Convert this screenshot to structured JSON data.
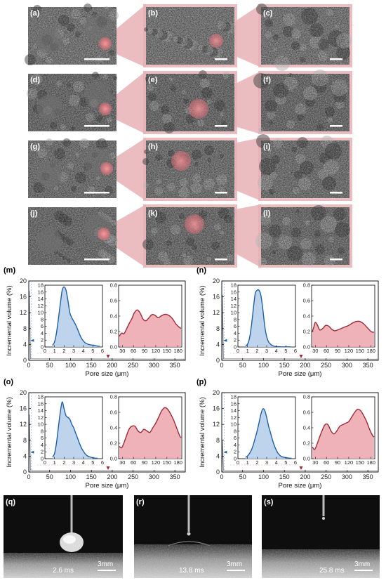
{
  "sem_panels": [
    {
      "label": "(a)"
    },
    {
      "label": "(b)"
    },
    {
      "label": "(c)"
    },
    {
      "label": "(d)"
    },
    {
      "label": "(e)"
    },
    {
      "label": "(f)"
    },
    {
      "label": "(g)"
    },
    {
      "label": "(h)"
    },
    {
      "label": "(i)"
    },
    {
      "label": "(j)"
    },
    {
      "label": "(k)"
    },
    {
      "label": "(l)"
    }
  ],
  "colors": {
    "highlight": "#e06b73",
    "wedge": "#e8b2b6",
    "small_line": "#1f5fa8",
    "small_fill": "#b7cfea",
    "large_line": "#9e2a35",
    "large_fill": "#ecaab0"
  },
  "chart_data": [
    {
      "panel": "(m)",
      "type": "area",
      "main": {
        "ylabel": "Incremental volume (%)",
        "xlabel": "Pore size (μm)",
        "xlim": [
          0,
          375
        ],
        "ylim": [
          0,
          20
        ],
        "xticks": [
          0,
          50,
          100,
          150,
          200,
          250,
          300,
          350
        ],
        "yticks": [
          0,
          4,
          8,
          12,
          16,
          20
        ]
      },
      "inset_small": {
        "xlim": [
          0,
          6
        ],
        "ylim": [
          0,
          18
        ],
        "xticks": [
          0,
          1,
          2,
          3,
          4,
          5,
          6
        ],
        "yticks": [
          0,
          2,
          4,
          6,
          8,
          10,
          12,
          14,
          16,
          18
        ],
        "x": [
          0.8,
          1.0,
          1.2,
          1.4,
          1.6,
          1.8,
          2.0,
          2.2,
          2.4,
          2.6,
          2.8,
          3.0,
          3.2,
          3.4,
          3.6,
          3.8,
          4.0,
          4.2,
          4.5,
          4.8,
          5.1,
          5.4,
          5.7
        ],
        "y": [
          0.5,
          1.5,
          4,
          8,
          12.5,
          16.5,
          17.5,
          16.5,
          13.5,
          10,
          8.5,
          7.5,
          6.5,
          5.2,
          3.8,
          2.6,
          1.8,
          1.2,
          0.8,
          0.6,
          0.5,
          0.3,
          0.2
        ]
      },
      "inset_large": {
        "xlim": [
          20,
          190
        ],
        "ylim": [
          0,
          0.8
        ],
        "xticks": [
          30,
          60,
          90,
          120,
          150,
          180
        ],
        "yticks": [
          0,
          0.2,
          0.4,
          0.6,
          0.8
        ],
        "x": [
          22,
          28,
          34,
          40,
          48,
          56,
          62,
          70,
          78,
          86,
          94,
          102,
          110,
          118,
          126,
          134,
          142,
          150,
          158,
          166,
          174,
          182,
          188
        ],
        "y": [
          0.14,
          0.18,
          0.17,
          0.22,
          0.3,
          0.37,
          0.44,
          0.48,
          0.44,
          0.36,
          0.34,
          0.38,
          0.42,
          0.41,
          0.38,
          0.4,
          0.42,
          0.42,
          0.4,
          0.36,
          0.3,
          0.26,
          0.24
        ]
      }
    },
    {
      "panel": "(n)",
      "type": "area",
      "main": {
        "ylabel": "Incremental volume (%)",
        "xlabel": "Pore size (μm)",
        "xlim": [
          0,
          375
        ],
        "ylim": [
          0,
          20
        ],
        "xticks": [
          0,
          50,
          100,
          150,
          200,
          250,
          300,
          350
        ],
        "yticks": [
          0,
          4,
          8,
          12,
          16,
          20
        ]
      },
      "inset_small": {
        "xlim": [
          0,
          6
        ],
        "ylim": [
          0,
          18
        ],
        "xticks": [
          0,
          1,
          2,
          3,
          4,
          5,
          6
        ],
        "yticks": [
          0,
          2,
          4,
          6,
          8,
          10,
          12,
          14,
          16,
          18
        ],
        "x": [
          0.8,
          1.0,
          1.2,
          1.4,
          1.6,
          1.8,
          2.0,
          2.2,
          2.4,
          2.6,
          2.8,
          3.0,
          3.2,
          3.4,
          3.6,
          3.8,
          4.0,
          4.5,
          5.0,
          5.5
        ],
        "y": [
          0.3,
          0.8,
          2.5,
          6,
          11,
          15.5,
          16.5,
          16.5,
          15,
          11,
          6,
          3,
          1.5,
          0.8,
          0.4,
          0.2,
          0.1,
          0.05,
          0.05,
          0.05
        ]
      },
      "inset_large": {
        "xlim": [
          20,
          190
        ],
        "ylim": [
          0,
          0.8
        ],
        "xticks": [
          30,
          60,
          90,
          120,
          150,
          180
        ],
        "yticks": [
          0,
          0.2,
          0.4,
          0.6,
          0.8
        ],
        "x": [
          22,
          26,
          30,
          36,
          42,
          50,
          58,
          66,
          74,
          82,
          90,
          100,
          110,
          120,
          130,
          140,
          150,
          160,
          170,
          180,
          188
        ],
        "y": [
          0.2,
          0.26,
          0.32,
          0.28,
          0.22,
          0.24,
          0.28,
          0.27,
          0.23,
          0.21,
          0.22,
          0.24,
          0.26,
          0.28,
          0.31,
          0.33,
          0.33,
          0.3,
          0.25,
          0.2,
          0.19
        ]
      }
    },
    {
      "panel": "(o)",
      "type": "area",
      "main": {
        "ylabel": "Incremental volume (%)",
        "xlabel": "Pore size (μm)",
        "xlim": [
          0,
          375
        ],
        "ylim": [
          0,
          20
        ],
        "xticks": [
          0,
          50,
          100,
          150,
          200,
          250,
          300,
          350
        ],
        "yticks": [
          0,
          4,
          8,
          12,
          16,
          20
        ]
      },
      "inset_small": {
        "xlim": [
          0,
          6
        ],
        "ylim": [
          0,
          18
        ],
        "xticks": [
          0,
          1,
          2,
          3,
          4,
          5,
          6
        ],
        "yticks": [
          0,
          2,
          4,
          6,
          8,
          10,
          12,
          14,
          16,
          18
        ],
        "x": [
          0.8,
          1.0,
          1.2,
          1.4,
          1.6,
          1.8,
          2.0,
          2.2,
          2.4,
          2.6,
          2.8,
          3.0,
          3.2,
          3.4,
          3.6,
          3.8,
          4.0,
          4.2,
          4.5,
          4.8,
          5.1,
          5.5
        ],
        "y": [
          0.5,
          1.5,
          4.5,
          9,
          13.5,
          16.5,
          14.5,
          12.5,
          12,
          11.5,
          10,
          9,
          7.5,
          6,
          4.5,
          3.2,
          2.2,
          1.4,
          0.7,
          0.4,
          0.2,
          0.1
        ]
      },
      "inset_large": {
        "xlim": [
          20,
          190
        ],
        "ylim": [
          0,
          0.8
        ],
        "xticks": [
          30,
          60,
          90,
          120,
          150,
          180
        ],
        "yticks": [
          0,
          0.2,
          0.4,
          0.6,
          0.8
        ],
        "x": [
          22,
          28,
          34,
          40,
          48,
          56,
          64,
          72,
          80,
          88,
          96,
          104,
          112,
          120,
          128,
          136,
          144,
          152,
          160,
          168,
          176,
          184,
          188
        ],
        "y": [
          0.16,
          0.14,
          0.2,
          0.28,
          0.38,
          0.42,
          0.42,
          0.36,
          0.34,
          0.38,
          0.36,
          0.34,
          0.4,
          0.46,
          0.54,
          0.62,
          0.66,
          0.64,
          0.58,
          0.5,
          0.4,
          0.3,
          0.27
        ]
      }
    },
    {
      "panel": "(p)",
      "type": "area",
      "main": {
        "ylabel": "Incremental volume (%)",
        "xlabel": "Pore size (μm)",
        "xlim": [
          0,
          375
        ],
        "ylim": [
          0,
          20
        ],
        "xticks": [
          0,
          50,
          100,
          150,
          200,
          250,
          300,
          350
        ],
        "yticks": [
          0,
          4,
          8,
          12,
          16,
          20
        ]
      },
      "inset_small": {
        "xlim": [
          0,
          6
        ],
        "ylim": [
          0,
          18
        ],
        "xticks": [
          0,
          1,
          2,
          3,
          4,
          5,
          6
        ],
        "yticks": [
          0,
          2,
          4,
          6,
          8,
          10,
          12,
          14,
          16,
          18
        ],
        "x": [
          0.8,
          1.0,
          1.2,
          1.4,
          1.6,
          1.8,
          2.0,
          2.2,
          2.4,
          2.6,
          2.8,
          3.0,
          3.2,
          3.4,
          3.6,
          3.8,
          4.0,
          4.2,
          4.5,
          4.8,
          5.2,
          5.6
        ],
        "y": [
          0.4,
          0.8,
          1.5,
          2.5,
          4,
          6,
          8,
          10.5,
          13,
          14.5,
          14,
          12,
          9.5,
          7.5,
          5.5,
          3.8,
          2.5,
          1.5,
          0.7,
          0.4,
          0.2,
          0.1
        ]
      },
      "inset_large": {
        "xlim": [
          20,
          190
        ],
        "ylim": [
          0,
          0.8
        ],
        "xticks": [
          30,
          60,
          90,
          120,
          150,
          180
        ],
        "yticks": [
          0,
          0.2,
          0.4,
          0.6,
          0.8
        ],
        "x": [
          22,
          28,
          34,
          40,
          48,
          56,
          64,
          72,
          80,
          88,
          96,
          104,
          112,
          120,
          128,
          136,
          144,
          152,
          160,
          168,
          176,
          184,
          188
        ],
        "y": [
          0.15,
          0.12,
          0.18,
          0.26,
          0.36,
          0.44,
          0.44,
          0.36,
          0.32,
          0.36,
          0.42,
          0.44,
          0.46,
          0.48,
          0.54,
          0.6,
          0.64,
          0.62,
          0.56,
          0.48,
          0.38,
          0.3,
          0.28
        ]
      }
    }
  ],
  "droplet_panels": [
    {
      "label": "(q)",
      "time": "2.6 ms",
      "scale": "3mm"
    },
    {
      "label": "(r)",
      "time": "13.8 ms",
      "scale": "3mm"
    },
    {
      "label": "(s)",
      "time": "25.8 ms",
      "scale": "3mm"
    }
  ]
}
